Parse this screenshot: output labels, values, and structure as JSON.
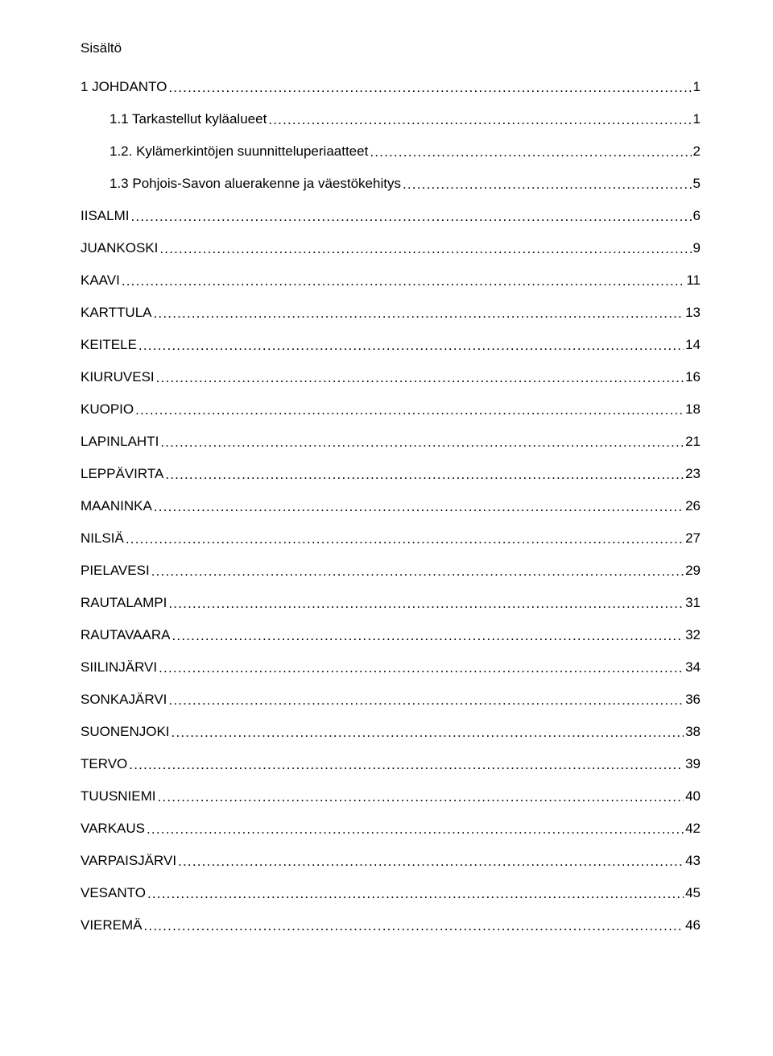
{
  "toc": {
    "title": "Sisältö",
    "entries": [
      {
        "label": "1 JOHDANTO",
        "page": "1",
        "indent": 0
      },
      {
        "label": "1.1 Tarkastellut kyläalueet",
        "page": "1",
        "indent": 1
      },
      {
        "label": "1.2. Kylämerkintöjen suunnitteluperiaatteet",
        "page": "2",
        "indent": 1
      },
      {
        "label": "1.3 Pohjois-Savon aluerakenne ja väestökehitys",
        "page": "5",
        "indent": 1
      },
      {
        "label": "IISALMI",
        "page": "6",
        "indent": 0
      },
      {
        "label": "JUANKOSKI",
        "page": "9",
        "indent": 0
      },
      {
        "label": "KAAVI",
        "page": "11",
        "indent": 0
      },
      {
        "label": "KARTTULA",
        "page": "13",
        "indent": 0
      },
      {
        "label": "KEITELE",
        "page": "14",
        "indent": 0
      },
      {
        "label": "KIURUVESI",
        "page": "16",
        "indent": 0
      },
      {
        "label": "KUOPIO",
        "page": "18",
        "indent": 0
      },
      {
        "label": "LAPINLAHTI",
        "page": "21",
        "indent": 0
      },
      {
        "label": "LEPPÄVIRTA",
        "page": "23",
        "indent": 0
      },
      {
        "label": "MAANINKA",
        "page": "26",
        "indent": 0
      },
      {
        "label": "NILSIÄ",
        "page": "27",
        "indent": 0
      },
      {
        "label": "PIELAVESI",
        "page": "29",
        "indent": 0
      },
      {
        "label": "RAUTALAMPI",
        "page": "31",
        "indent": 0
      },
      {
        "label": "RAUTAVAARA",
        "page": "32",
        "indent": 0
      },
      {
        "label": "SIILINJÄRVI",
        "page": "34",
        "indent": 0
      },
      {
        "label": "SONKAJÄRVI",
        "page": "36",
        "indent": 0
      },
      {
        "label": "SUONENJOKI",
        "page": "38",
        "indent": 0
      },
      {
        "label": "TERVO",
        "page": "39",
        "indent": 0
      },
      {
        "label": "TUUSNIEMI",
        "page": "40",
        "indent": 0
      },
      {
        "label": "VARKAUS",
        "page": "42",
        "indent": 0
      },
      {
        "label": "VARPAISJÄRVI",
        "page": "43",
        "indent": 0
      },
      {
        "label": "VESANTO",
        "page": "45",
        "indent": 0
      },
      {
        "label": "VIEREMÄ",
        "page": "46",
        "indent": 0
      }
    ]
  },
  "colors": {
    "text": "#000000",
    "background": "#ffffff"
  },
  "typography": {
    "font_family": "Arial",
    "title_fontsize_pt": 13,
    "entry_fontsize_pt": 13
  }
}
